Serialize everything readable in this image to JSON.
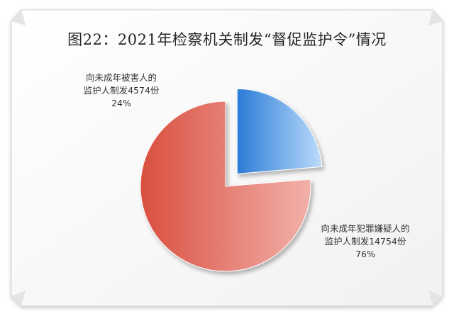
{
  "chart_data": {
    "type": "pie",
    "title": "图22：2021年检察机关制发“督促监护令”情况",
    "slices": [
      {
        "label_line1": "向未成年犯罪嫌疑人的",
        "label_line2": "监护人制发14754份",
        "value": 14754,
        "percent_label": "76%",
        "color_dark": "#d94f3f",
        "color_light": "#f2b1aa",
        "exploded": false
      },
      {
        "label_line1": "向未成年被害人的",
        "label_line2": "监护人制发4574份",
        "value": 4574,
        "percent_label": "24%",
        "color_dark": "#2a7bd6",
        "color_light": "#bcdcfb",
        "exploded": true
      }
    ],
    "legend": "none"
  },
  "colors": {
    "frame_bg": "#fbfbfb",
    "frame_border": "#d6d6d6"
  }
}
